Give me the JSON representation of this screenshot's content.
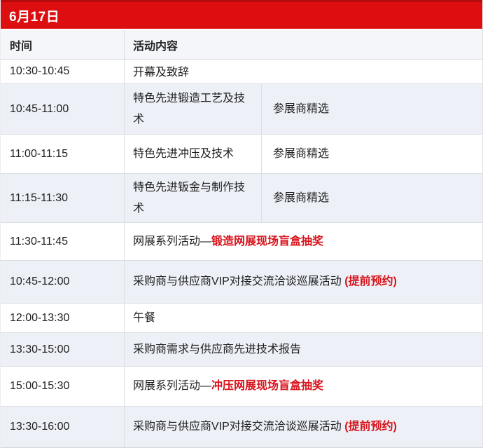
{
  "header": {
    "date": "6月17日"
  },
  "columns": {
    "time": "时间",
    "activity": "活动内容"
  },
  "colors": {
    "date_bar_red": "#dc0e10",
    "date_bar_top_edge": "#b50b0c",
    "highlight_red": "#d8121a",
    "alt_row_bg": "#edf1f7",
    "header_row_bg": "#f5f6f9",
    "border": "#dcdee1"
  },
  "schedule": {
    "rows": [
      {
        "time": "10:30-10:45",
        "activity": "开幕及致辞",
        "highlight": "",
        "note": ""
      },
      {
        "time": "10:45-11:00",
        "activity": "特色先进锻造工艺及技术",
        "highlight": "",
        "note": "参展商精选"
      },
      {
        "time": "11:00-11:15",
        "activity": "特色先进冲压及技术",
        "highlight": "",
        "note": "参展商精选"
      },
      {
        "time": "11:15-11:30",
        "activity": "特色先进钣金与制作技术",
        "highlight": "",
        "note": "参展商精选"
      },
      {
        "time": "11:30-11:45",
        "activity": "网展系列活动—",
        "highlight": "锻造网展现场盲盒抽奖",
        "note": ""
      },
      {
        "time": "10:45-12:00",
        "activity": "采购商与供应商VIP对接交流洽谈巡展活动 ",
        "highlight": "(提前预约)",
        "note": ""
      },
      {
        "time": "12:00-13:30",
        "activity": "午餐",
        "highlight": "",
        "note": ""
      },
      {
        "time": "13:30-15:00",
        "activity": "采购商需求与供应商先进技术报告",
        "highlight": "",
        "note": ""
      },
      {
        "time": "15:00-15:30",
        "activity": "网展系列活动—",
        "highlight": "冲压网展现场盲盒抽奖",
        "note": ""
      },
      {
        "time": "13:30-16:00",
        "activity": "采购商与供应商VIP对接交流洽谈巡展活动 ",
        "highlight": "(提前预约)",
        "note": ""
      }
    ]
  }
}
